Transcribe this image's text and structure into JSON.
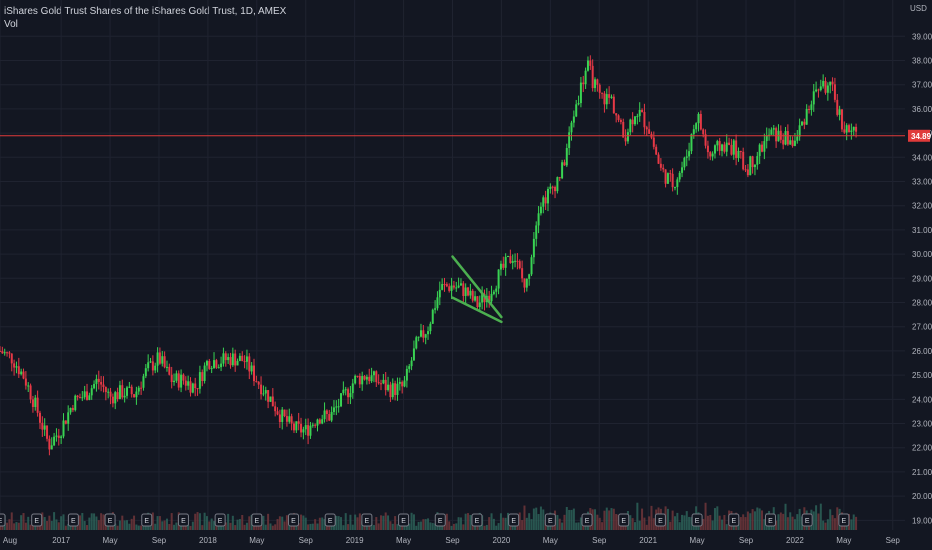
{
  "header": {
    "title": "iShares Gold Trust Shares of the iShares Gold Trust, 1D, AMEX",
    "volume_label": "Vol"
  },
  "colors": {
    "background": "#131722",
    "grid": "#1f2330",
    "up": "#26a69a",
    "down": "#ef5350",
    "up_bright": "#39d353",
    "down_bright": "#e63946",
    "volume": "#4a5060",
    "drawing": "#4caf50",
    "last_price_line": "#e03a3a",
    "text": "#b2b5be"
  },
  "chart_data": {
    "type": "candlestick",
    "currency": "USD",
    "last_price": "34.89",
    "last_price_value": 34.89,
    "ylim": [
      18.6,
      40.5
    ],
    "y_ticks": [
      "19.00",
      "20.00",
      "21.00",
      "22.00",
      "23.00",
      "24.00",
      "25.00",
      "26.00",
      "27.00",
      "28.00",
      "29.00",
      "30.00",
      "31.00",
      "32.00",
      "33.00",
      "34.00",
      "35.00",
      "36.00",
      "37.00",
      "38.00",
      "39.00"
    ],
    "x_ticks": [
      "Aug",
      "2017",
      "May",
      "Sep",
      "2018",
      "May",
      "Sep",
      "2019",
      "May",
      "Sep",
      "2020",
      "May",
      "Sep",
      "2021",
      "May",
      "Sep",
      "2022",
      "May",
      "Sep"
    ],
    "x_tick_dates": [
      "2016-08",
      "2017-01",
      "2017-05",
      "2017-09",
      "2018-01",
      "2018-05",
      "2018-09",
      "2019-01",
      "2019-05",
      "2019-09",
      "2020-01",
      "2020-05",
      "2020-09",
      "2021-01",
      "2021-05",
      "2021-09",
      "2022-01",
      "2022-05",
      "2022-09"
    ],
    "x_range": [
      "2016-08",
      "2022-10"
    ],
    "grid": true,
    "events_label": "E",
    "event_dates": [
      "2016-08",
      "2016-11",
      "2017-02",
      "2017-05",
      "2017-08",
      "2017-11",
      "2018-02",
      "2018-05",
      "2018-08",
      "2018-11",
      "2019-02",
      "2019-05",
      "2019-08",
      "2019-11",
      "2020-02",
      "2020-05",
      "2020-08",
      "2020-11",
      "2021-02",
      "2021-05",
      "2021-08",
      "2021-11",
      "2022-02",
      "2022-05"
    ],
    "price_path": [
      [
        "2016-08",
        26.0
      ],
      [
        "2016-09",
        25.7
      ],
      [
        "2016-10",
        24.9
      ],
      [
        "2016-11",
        23.6
      ],
      [
        "2016-12",
        22.1
      ],
      [
        "2017-01",
        22.8
      ],
      [
        "2017-02",
        23.9
      ],
      [
        "2017-03",
        24.2
      ],
      [
        "2017-04",
        24.8
      ],
      [
        "2017-05",
        24.1
      ],
      [
        "2017-06",
        24.3
      ],
      [
        "2017-07",
        24.2
      ],
      [
        "2017-08",
        25.2
      ],
      [
        "2017-09",
        25.7
      ],
      [
        "2017-10",
        24.8
      ],
      [
        "2017-11",
        24.8
      ],
      [
        "2017-12",
        24.5
      ],
      [
        "2018-01",
        25.6
      ],
      [
        "2018-02",
        25.6
      ],
      [
        "2018-03",
        25.7
      ],
      [
        "2018-04",
        25.6
      ],
      [
        "2018-05",
        24.8
      ],
      [
        "2018-06",
        24.1
      ],
      [
        "2018-07",
        23.3
      ],
      [
        "2018-08",
        22.8
      ],
      [
        "2018-09",
        22.7
      ],
      [
        "2018-10",
        23.3
      ],
      [
        "2018-11",
        23.3
      ],
      [
        "2018-12",
        24.0
      ],
      [
        "2019-01",
        24.8
      ],
      [
        "2019-02",
        25.0
      ],
      [
        "2019-03",
        24.7
      ],
      [
        "2019-04",
        24.4
      ],
      [
        "2019-05",
        24.5
      ],
      [
        "2019-06",
        26.2
      ],
      [
        "2019-07",
        27.0
      ],
      [
        "2019-08",
        28.6
      ],
      [
        "2019-09",
        28.7
      ],
      [
        "2019-10",
        28.5
      ],
      [
        "2019-11",
        27.9
      ],
      [
        "2019-12",
        28.4
      ],
      [
        "2020-01",
        29.3
      ],
      [
        "2020-02",
        30.0
      ],
      [
        "2020-03",
        28.5
      ],
      [
        "2020-04",
        32.0
      ],
      [
        "2020-05",
        32.6
      ],
      [
        "2020-06",
        33.5
      ],
      [
        "2020-07",
        36.0
      ],
      [
        "2020-08",
        37.8
      ],
      [
        "2020-09",
        36.5
      ],
      [
        "2020-10",
        36.4
      ],
      [
        "2020-11",
        34.8
      ],
      [
        "2020-12",
        36.0
      ],
      [
        "2021-01",
        35.3
      ],
      [
        "2021-02",
        33.5
      ],
      [
        "2021-03",
        32.9
      ],
      [
        "2021-04",
        33.8
      ],
      [
        "2021-05",
        35.8
      ],
      [
        "2021-06",
        34.0
      ],
      [
        "2021-07",
        34.5
      ],
      [
        "2021-08",
        34.4
      ],
      [
        "2021-09",
        33.5
      ],
      [
        "2021-10",
        34.2
      ],
      [
        "2021-11",
        35.0
      ],
      [
        "2021-12",
        34.8
      ],
      [
        "2022-01",
        34.6
      ],
      [
        "2022-02",
        36.0
      ],
      [
        "2022-03",
        37.0
      ],
      [
        "2022-04",
        36.8
      ],
      [
        "2022-05",
        35.2
      ],
      [
        "2022-06",
        34.9
      ]
    ],
    "annotations": {
      "pennant_upper": [
        [
          "2019-09",
          29.9
        ],
        [
          "2020-01",
          27.4
        ]
      ],
      "pennant_lower": [
        [
          "2019-09",
          28.2
        ],
        [
          "2020-01",
          27.2
        ]
      ]
    }
  }
}
